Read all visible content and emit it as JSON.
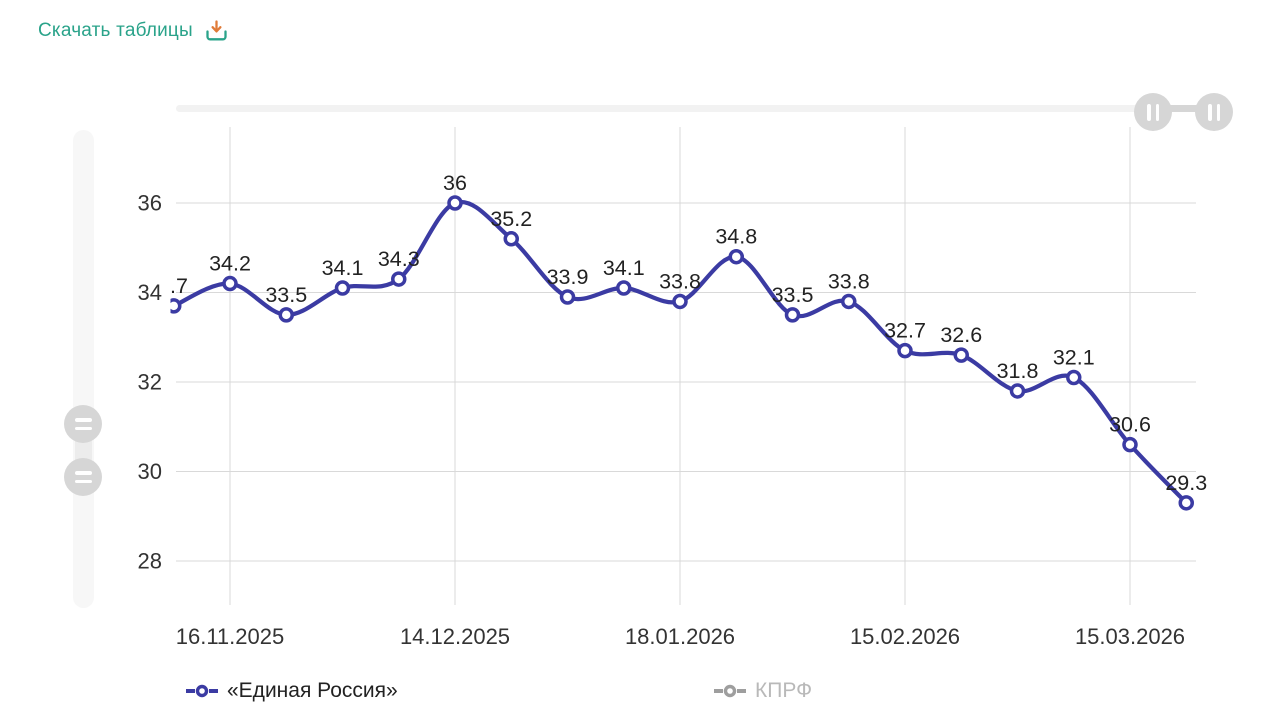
{
  "toolbar": {
    "download_label": "Скачать таблицы",
    "link_color": "#2aa38a",
    "download_icon_arrow_color": "#e07b39",
    "download_icon_tray_color": "#2aa38a"
  },
  "chart_data": {
    "type": "line",
    "series": [
      {
        "name": "«Единая Россия»",
        "color": "#3b3ba3",
        "visible": true,
        "values": [
          33.7,
          34.2,
          33.5,
          34.1,
          34.3,
          36,
          35.2,
          33.9,
          34.1,
          33.8,
          34.8,
          33.5,
          33.8,
          32.7,
          32.6,
          31.8,
          32.1,
          30.6,
          29.3
        ],
        "point_labels": [
          ".7",
          "34.2",
          "33.5",
          "34.1",
          "34.3",
          "36",
          "35.2",
          "33.9",
          "34.1",
          "33.8",
          "34.8",
          "33.5",
          "33.8",
          "32.7",
          "32.6",
          "31.8",
          "32.1",
          "30.6",
          "29.3"
        ],
        "first_point_clipped": true
      },
      {
        "name": "КПРФ",
        "color": "#9e9e9e",
        "visible": false,
        "values": []
      }
    ],
    "x_tick_labels": [
      "16.11.2025",
      "14.12.2025",
      "18.01.2026",
      "15.02.2026",
      "15.03.2026"
    ],
    "x_tick_point_indexes": [
      1,
      5,
      9,
      13,
      17
    ],
    "y_ticks": [
      36,
      34,
      32,
      30,
      28
    ],
    "ylim": [
      27.0,
      37.6
    ],
    "grid": true,
    "legend_position": "bottom"
  },
  "style_colors": {
    "grid": "#d9d9d9",
    "axis_text": "#333333",
    "data_label": "#222222",
    "legend_muted": "#b9b9b9",
    "marker_fill": "#ffffff"
  }
}
